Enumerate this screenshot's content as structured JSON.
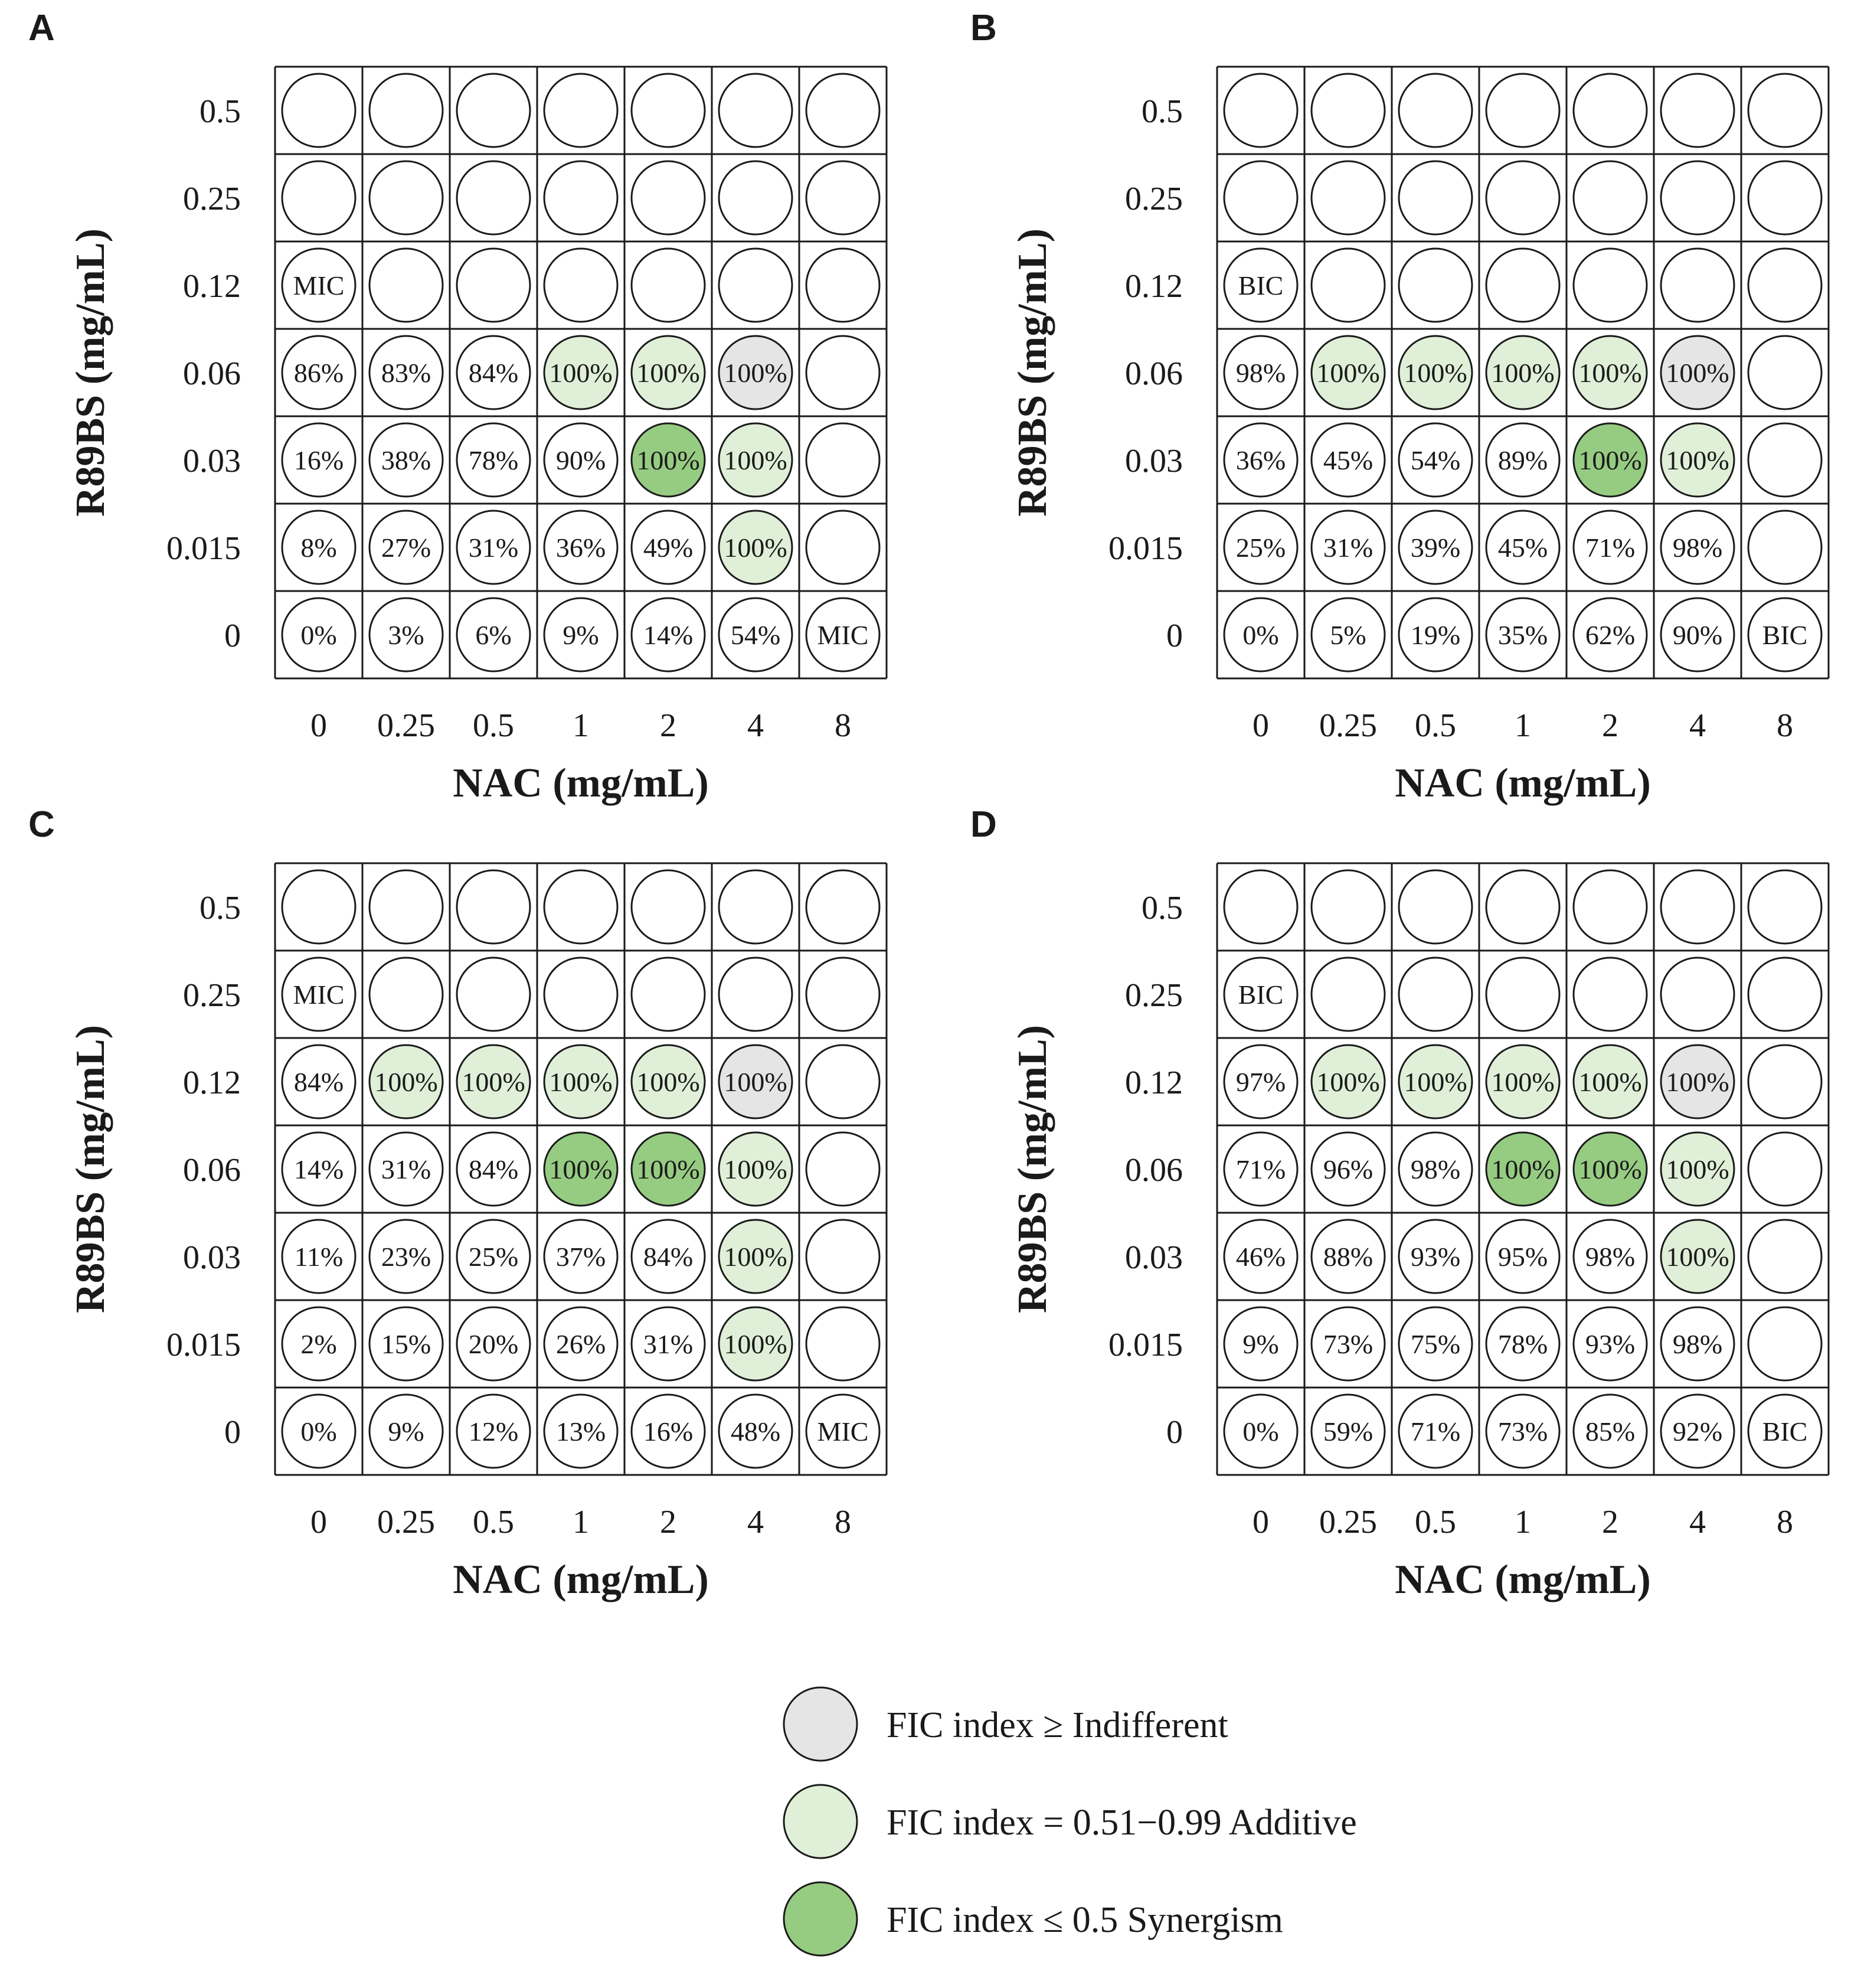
{
  "colors": {
    "none": "#ffffff",
    "indifferent": "#e5e5e5",
    "additive": "#e0f0d8",
    "synergism": "#96cc82",
    "stroke": "#1a1a1a"
  },
  "chart_data": [
    {
      "type": "table",
      "panel": "A",
      "xlabel": "NAC (mg/mL)",
      "ylabel": "R89BS (mg/mL)",
      "x_ticks": [
        "0",
        "0.25",
        "0.5",
        "1",
        "2",
        "4",
        "8"
      ],
      "y_ticks": [
        "0.5",
        "0.25",
        "0.12",
        "0.06",
        "0.03",
        "0.015",
        "0"
      ],
      "cells": [
        [
          "",
          "",
          "",
          "",
          "",
          "",
          ""
        ],
        [
          "",
          "",
          "",
          "",
          "",
          "",
          ""
        ],
        [
          "MIC",
          "",
          "",
          "",
          "",
          "",
          ""
        ],
        [
          "86%",
          "83%",
          "84%",
          "100%",
          "100%",
          "100%",
          ""
        ],
        [
          "16%",
          "38%",
          "78%",
          "90%",
          "100%",
          "100%",
          ""
        ],
        [
          "8%",
          "27%",
          "31%",
          "36%",
          "49%",
          "100%",
          ""
        ],
        [
          "0%",
          "3%",
          "6%",
          "9%",
          "14%",
          "54%",
          "MIC"
        ]
      ],
      "fills": [
        [
          "none",
          "none",
          "none",
          "none",
          "none",
          "none",
          "none"
        ],
        [
          "none",
          "none",
          "none",
          "none",
          "none",
          "none",
          "none"
        ],
        [
          "none",
          "none",
          "none",
          "none",
          "none",
          "none",
          "none"
        ],
        [
          "none",
          "none",
          "none",
          "additive",
          "additive",
          "indifferent",
          "none"
        ],
        [
          "none",
          "none",
          "none",
          "none",
          "synergism",
          "additive",
          "none"
        ],
        [
          "none",
          "none",
          "none",
          "none",
          "none",
          "additive",
          "none"
        ],
        [
          "none",
          "none",
          "none",
          "none",
          "none",
          "none",
          "none"
        ]
      ]
    },
    {
      "type": "table",
      "panel": "B",
      "xlabel": "NAC (mg/mL)",
      "ylabel": "R89BS (mg/mL)",
      "x_ticks": [
        "0",
        "0.25",
        "0.5",
        "1",
        "2",
        "4",
        "8"
      ],
      "y_ticks": [
        "0.5",
        "0.25",
        "0.12",
        "0.06",
        "0.03",
        "0.015",
        "0"
      ],
      "cells": [
        [
          "",
          "",
          "",
          "",
          "",
          "",
          ""
        ],
        [
          "",
          "",
          "",
          "",
          "",
          "",
          ""
        ],
        [
          "BIC",
          "",
          "",
          "",
          "",
          "",
          ""
        ],
        [
          "98%",
          "100%",
          "100%",
          "100%",
          "100%",
          "100%",
          ""
        ],
        [
          "36%",
          "45%",
          "54%",
          "89%",
          "100%",
          "100%",
          ""
        ],
        [
          "25%",
          "31%",
          "39%",
          "45%",
          "71%",
          "98%",
          ""
        ],
        [
          "0%",
          "5%",
          "19%",
          "35%",
          "62%",
          "90%",
          "BIC"
        ]
      ],
      "fills": [
        [
          "none",
          "none",
          "none",
          "none",
          "none",
          "none",
          "none"
        ],
        [
          "none",
          "none",
          "none",
          "none",
          "none",
          "none",
          "none"
        ],
        [
          "none",
          "none",
          "none",
          "none",
          "none",
          "none",
          "none"
        ],
        [
          "none",
          "additive",
          "additive",
          "additive",
          "additive",
          "indifferent",
          "none"
        ],
        [
          "none",
          "none",
          "none",
          "none",
          "synergism",
          "additive",
          "none"
        ],
        [
          "none",
          "none",
          "none",
          "none",
          "none",
          "none",
          "none"
        ],
        [
          "none",
          "none",
          "none",
          "none",
          "none",
          "none",
          "none"
        ]
      ]
    },
    {
      "type": "table",
      "panel": "C",
      "xlabel": "NAC (mg/mL)",
      "ylabel": "R89BS (mg/mL)",
      "x_ticks": [
        "0",
        "0.25",
        "0.5",
        "1",
        "2",
        "4",
        "8"
      ],
      "y_ticks": [
        "0.5",
        "0.25",
        "0.12",
        "0.06",
        "0.03",
        "0.015",
        "0"
      ],
      "cells": [
        [
          "",
          "",
          "",
          "",
          "",
          "",
          ""
        ],
        [
          "MIC",
          "",
          "",
          "",
          "",
          "",
          ""
        ],
        [
          "84%",
          "100%",
          "100%",
          "100%",
          "100%",
          "100%",
          ""
        ],
        [
          "14%",
          "31%",
          "84%",
          "100%",
          "100%",
          "100%",
          ""
        ],
        [
          "11%",
          "23%",
          "25%",
          "37%",
          "84%",
          "100%",
          ""
        ],
        [
          "2%",
          "15%",
          "20%",
          "26%",
          "31%",
          "100%",
          ""
        ],
        [
          "0%",
          "9%",
          "12%",
          "13%",
          "16%",
          "48%",
          "MIC"
        ]
      ],
      "fills": [
        [
          "none",
          "none",
          "none",
          "none",
          "none",
          "none",
          "none"
        ],
        [
          "none",
          "none",
          "none",
          "none",
          "none",
          "none",
          "none"
        ],
        [
          "none",
          "additive",
          "additive",
          "additive",
          "additive",
          "indifferent",
          "none"
        ],
        [
          "none",
          "none",
          "none",
          "synergism",
          "synergism",
          "additive",
          "none"
        ],
        [
          "none",
          "none",
          "none",
          "none",
          "none",
          "additive",
          "none"
        ],
        [
          "none",
          "none",
          "none",
          "none",
          "none",
          "additive",
          "none"
        ],
        [
          "none",
          "none",
          "none",
          "none",
          "none",
          "none",
          "none"
        ]
      ]
    },
    {
      "type": "table",
      "panel": "D",
      "xlabel": "NAC (mg/mL)",
      "ylabel": "R89BS (mg/mL)",
      "x_ticks": [
        "0",
        "0.25",
        "0.5",
        "1",
        "2",
        "4",
        "8"
      ],
      "y_ticks": [
        "0.5",
        "0.25",
        "0.12",
        "0.06",
        "0.03",
        "0.015",
        "0"
      ],
      "cells": [
        [
          "",
          "",
          "",
          "",
          "",
          "",
          ""
        ],
        [
          "BIC",
          "",
          "",
          "",
          "",
          "",
          ""
        ],
        [
          "97%",
          "100%",
          "100%",
          "100%",
          "100%",
          "100%",
          ""
        ],
        [
          "71%",
          "96%",
          "98%",
          "100%",
          "100%",
          "100%",
          ""
        ],
        [
          "46%",
          "88%",
          "93%",
          "95%",
          "98%",
          "100%",
          ""
        ],
        [
          "9%",
          "73%",
          "75%",
          "78%",
          "93%",
          "98%",
          ""
        ],
        [
          "0%",
          "59%",
          "71%",
          "73%",
          "85%",
          "92%",
          "BIC"
        ]
      ],
      "fills": [
        [
          "none",
          "none",
          "none",
          "none",
          "none",
          "none",
          "none"
        ],
        [
          "none",
          "none",
          "none",
          "none",
          "none",
          "none",
          "none"
        ],
        [
          "none",
          "additive",
          "additive",
          "additive",
          "additive",
          "indifferent",
          "none"
        ],
        [
          "none",
          "none",
          "none",
          "synergism",
          "synergism",
          "additive",
          "none"
        ],
        [
          "none",
          "none",
          "none",
          "none",
          "none",
          "additive",
          "none"
        ],
        [
          "none",
          "none",
          "none",
          "none",
          "none",
          "none",
          "none"
        ],
        [
          "none",
          "none",
          "none",
          "none",
          "none",
          "none",
          "none"
        ]
      ]
    }
  ],
  "legend": [
    {
      "key": "indifferent",
      "label": "FIC index ≥ Indifferent"
    },
    {
      "key": "additive",
      "label": "FIC index = 0.51−0.99 Additive"
    },
    {
      "key": "synergism",
      "label": "FIC index ≤ 0.5 Synergism"
    }
  ]
}
